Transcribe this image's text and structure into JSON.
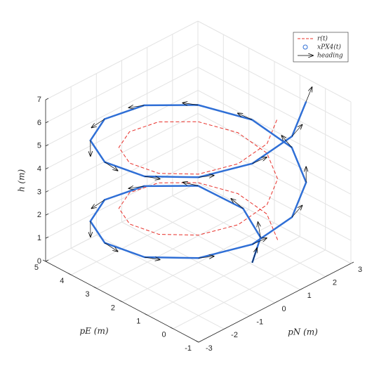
{
  "chart_data": {
    "type": "line3d",
    "xlabel": "pN (m)",
    "ylabel": "pE (m)",
    "zlabel": "h (m)",
    "xlim": [
      -3,
      3
    ],
    "ylim": [
      -1,
      5
    ],
    "zlim": [
      0,
      7
    ],
    "xticks": [
      -3,
      -2,
      -1,
      0,
      1,
      2,
      3
    ],
    "yticks": [
      -1,
      0,
      1,
      2,
      3,
      4,
      5
    ],
    "zticks": [
      0,
      1,
      2,
      3,
      4,
      5,
      6,
      7
    ],
    "grid": true,
    "legend": "upper right",
    "heading_label": "heading",
    "heading_color": "#000000",
    "series": [
      {
        "name": "r(t)",
        "color": "#e8302a",
        "style": "dashed",
        "x": [
          1.56,
          2.13,
          2.13,
          1.56,
          0.57,
          -0.57,
          -1.56,
          -2.13,
          -2.13,
          -1.56,
          -0.57,
          0.57,
          1.56,
          2.13,
          2.13,
          1.56,
          0.57,
          -0.57,
          -1.56,
          -2.13,
          -2.13,
          -1.56,
          -0.57,
          0.57,
          1.56
        ],
        "y": [
          0.44,
          1.43,
          2.57,
          3.56,
          4.13,
          4.13,
          3.56,
          2.57,
          1.43,
          0.44,
          -0.13,
          -0.13,
          0.44,
          1.43,
          2.57,
          3.56,
          4.13,
          4.13,
          3.56,
          2.57,
          1.43,
          0.44,
          -0.13,
          -0.13,
          0.44
        ],
        "z": [
          1.0,
          1.22,
          1.44,
          1.66,
          1.88,
          2.1,
          2.32,
          2.54,
          2.76,
          2.98,
          3.2,
          3.42,
          3.64,
          3.86,
          4.08,
          4.3,
          4.52,
          4.74,
          4.96,
          5.18,
          5.4,
          5.62,
          5.84,
          6.06,
          6.28
        ]
      },
      {
        "name": "xPX4(t)",
        "color": "#2f6fd6",
        "style": "solid",
        "x": [
          1.06,
          1.93,
          2.42,
          2.12,
          0.78,
          -0.78,
          -2.12,
          -2.9,
          -2.9,
          -2.12,
          -0.78,
          0.78,
          2.12,
          2.9,
          2.9,
          2.12,
          0.78,
          -0.78,
          -2.12,
          -2.9,
          -2.9,
          -2.12,
          -0.78,
          0.78,
          2.12
        ],
        "y": [
          0.94,
          1.48,
          2.65,
          4.12,
          4.9,
          4.9,
          4.12,
          2.78,
          1.22,
          -0.12,
          -0.9,
          -0.9,
          -0.12,
          1.22,
          2.78,
          4.12,
          4.9,
          4.9,
          4.12,
          2.78,
          1.22,
          -0.12,
          -0.9,
          -0.9,
          -0.12
        ],
        "z": [
          0,
          0.29,
          0.58,
          0.88,
          1.17,
          1.46,
          1.75,
          2.04,
          2.33,
          2.63,
          2.92,
          3.21,
          3.5,
          3.79,
          4.08,
          4.38,
          4.67,
          4.96,
          5.25,
          5.54,
          5.83,
          6.13,
          6.42,
          6.71,
          7.0
        ]
      }
    ]
  }
}
